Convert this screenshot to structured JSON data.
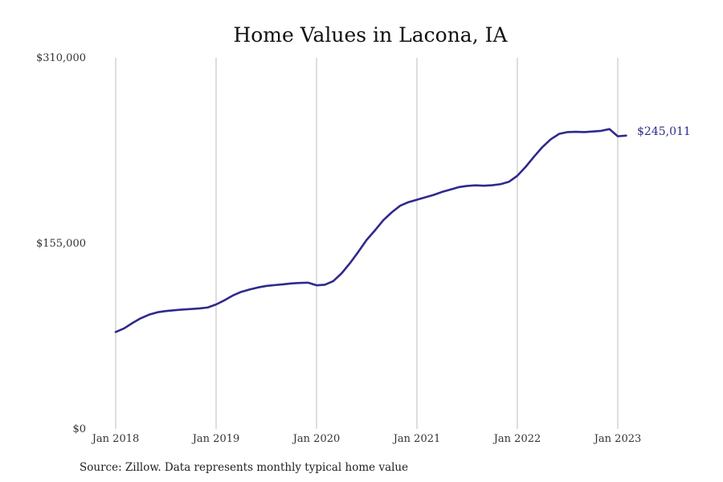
{
  "chart_data": {
    "type": "line",
    "title": "Home Values in Lacona, IA",
    "xlabel": "",
    "ylabel": "",
    "y_ticks": [
      "$310,000",
      "$155,000",
      "$0"
    ],
    "y_tick_values": [
      310000,
      155000,
      0
    ],
    "ylim": [
      0,
      310000
    ],
    "x_ticks": [
      "Jan 2018",
      "Jan 2019",
      "Jan 2020",
      "Jan 2021",
      "Jan 2022",
      "Jan 2023"
    ],
    "xlim": [
      "2018-01",
      "2023-02"
    ],
    "grid": "vertical",
    "line_color": "#2e2a8c",
    "end_label": "$245,011",
    "source": "Source: Zillow. Data represents monthly typical home value",
    "series": [
      {
        "x": [
          "2018-01",
          "2018-02",
          "2018-03",
          "2018-04",
          "2018-05",
          "2018-06",
          "2018-07",
          "2018-08",
          "2018-09",
          "2018-10",
          "2018-11",
          "2018-12",
          "2019-01",
          "2019-02",
          "2019-03",
          "2019-04",
          "2019-05",
          "2019-06",
          "2019-07",
          "2019-08",
          "2019-09",
          "2019-10",
          "2019-11",
          "2019-12",
          "2020-01",
          "2020-02",
          "2020-03",
          "2020-04",
          "2020-05",
          "2020-06",
          "2020-07",
          "2020-08",
          "2020-09",
          "2020-10",
          "2020-11",
          "2020-12",
          "2021-01",
          "2021-02",
          "2021-03",
          "2021-04",
          "2021-05",
          "2021-06",
          "2021-07",
          "2021-08",
          "2021-09",
          "2021-10",
          "2021-11",
          "2021-12",
          "2022-01",
          "2022-02",
          "2022-03",
          "2022-04",
          "2022-05",
          "2022-06",
          "2022-07",
          "2022-08",
          "2022-09",
          "2022-10",
          "2022-11",
          "2022-12",
          "2023-01",
          "2023-02"
        ],
        "values": [
          81000,
          84000,
          88500,
          92500,
          95500,
          97500,
          98500,
          99200,
          99800,
          100200,
          100700,
          101500,
          104000,
          107500,
          111500,
          114500,
          116500,
          118200,
          119500,
          120200,
          120800,
          121600,
          122000,
          122200,
          120000,
          120500,
          123500,
          130000,
          138500,
          148000,
          158000,
          166000,
          174500,
          181000,
          186500,
          189500,
          191500,
          193500,
          195500,
          198000,
          200000,
          202000,
          203000,
          203500,
          203200,
          203600,
          204500,
          206500,
          211500,
          219000,
          227500,
          235500,
          242000,
          246500,
          248000,
          248200,
          248000,
          248500,
          249000,
          250500,
          244500,
          245011
        ]
      }
    ]
  }
}
